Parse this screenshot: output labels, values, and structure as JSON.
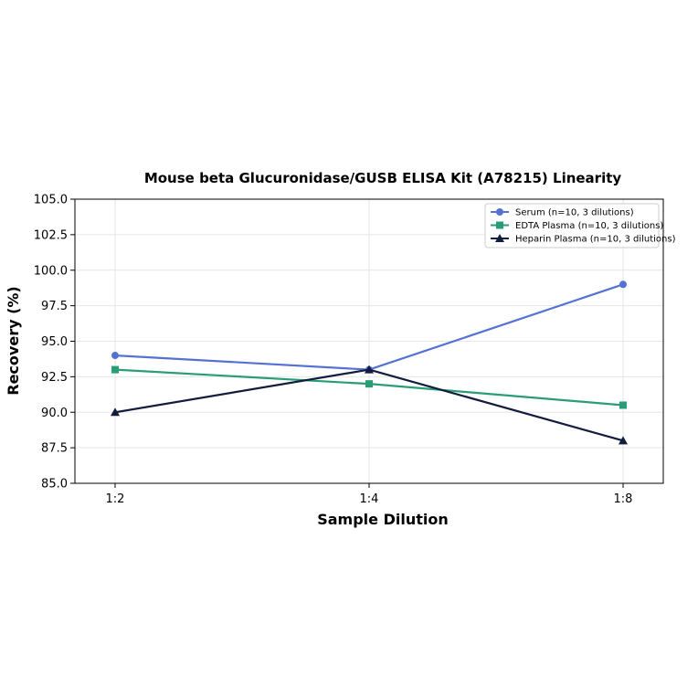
{
  "chart_data": {
    "type": "line",
    "title": "Mouse beta Glucuronidase/GUSB ELISA Kit (A78215) Linearity",
    "xlabel": "Sample Dilution",
    "ylabel": "Recovery (%)",
    "categories": [
      "1:2",
      "1:4",
      "1:8"
    ],
    "ylim": [
      85.0,
      105.0
    ],
    "yticks": [
      "85.0",
      "87.5",
      "90.0",
      "92.5",
      "95.0",
      "97.5",
      "100.0",
      "102.5",
      "105.0"
    ],
    "grid": true,
    "legend_position": "top-right",
    "series": [
      {
        "name": "Serum (n=10, 3 dilutions)",
        "values": [
          94.0,
          93.0,
          99.0
        ],
        "color": "#5472d3",
        "marker": "circle"
      },
      {
        "name": "EDTA Plasma (n=10, 3 dilutions)",
        "values": [
          93.0,
          92.0,
          90.5
        ],
        "color": "#2a9d78",
        "marker": "square"
      },
      {
        "name": "Heparin Plasma (n=10, 3 dilutions)",
        "values": [
          90.0,
          93.0,
          88.0
        ],
        "color": "#121c3e",
        "marker": "triangle"
      }
    ]
  }
}
